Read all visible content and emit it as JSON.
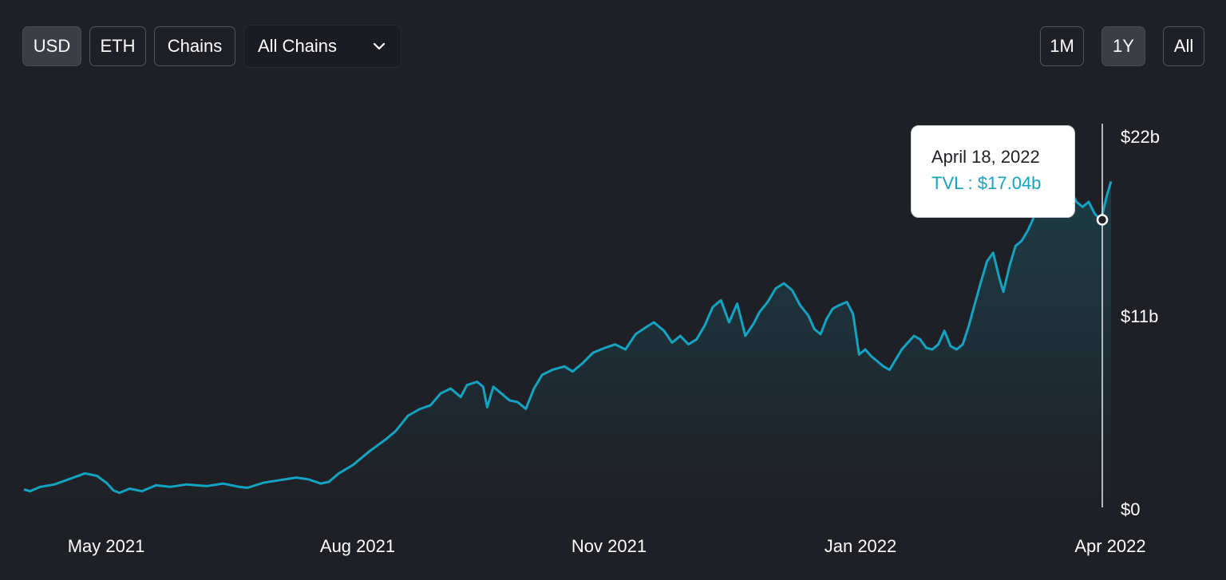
{
  "toolbar": {
    "denomination": [
      {
        "label": "USD",
        "active": true
      },
      {
        "label": "ETH",
        "active": false
      }
    ],
    "chains_label": "Chains",
    "chain_select": {
      "selected": "All Chains"
    },
    "ranges": [
      {
        "label": "1M",
        "active": false
      },
      {
        "label": "1Y",
        "active": true
      },
      {
        "label": "All",
        "active": false
      }
    ]
  },
  "tooltip": {
    "date": "April 18, 2022",
    "label": "TVL",
    "value": "$17.04b"
  },
  "colors": {
    "background": "#1f2025",
    "line": "#14a3c1",
    "tooltip_value": "#14a3c1"
  },
  "chart_data": {
    "type": "area",
    "x_ticks": [
      "May 2021",
      "Aug 2021",
      "Nov 2021",
      "Jan 2022",
      "Apr 2022"
    ],
    "y_ticks": [
      "$0",
      "$11b",
      "$22b"
    ],
    "ylim": [
      0,
      22
    ],
    "y_unit": "billion USD",
    "hovered": {
      "date": "2022-04-18",
      "value": 17.04
    },
    "series": [
      {
        "values": [
          [
            0,
            1.15
          ],
          [
            3,
            1.05
          ],
          [
            8,
            1.3
          ],
          [
            15,
            1.45
          ],
          [
            22,
            1.75
          ],
          [
            30,
            2.1
          ],
          [
            36,
            1.95
          ],
          [
            41,
            1.5
          ],
          [
            44,
            1.1
          ],
          [
            47,
            0.95
          ],
          [
            52,
            1.2
          ],
          [
            58,
            1.05
          ],
          [
            65,
            1.4
          ],
          [
            72,
            1.3
          ],
          [
            80,
            1.45
          ],
          [
            90,
            1.35
          ],
          [
            98,
            1.5
          ],
          [
            106,
            1.3
          ],
          [
            110,
            1.25
          ],
          [
            118,
            1.55
          ],
          [
            126,
            1.7
          ],
          [
            134,
            1.85
          ],
          [
            140,
            1.75
          ],
          [
            146,
            1.5
          ],
          [
            150,
            1.6
          ],
          [
            155,
            2.1
          ],
          [
            162,
            2.6
          ],
          [
            170,
            3.4
          ],
          [
            178,
            4.1
          ],
          [
            183,
            4.6
          ],
          [
            189,
            5.5
          ],
          [
            195,
            5.9
          ],
          [
            200,
            6.1
          ],
          [
            205,
            6.8
          ],
          [
            210,
            7.1
          ],
          [
            215,
            6.6
          ],
          [
            218,
            7.3
          ],
          [
            223,
            7.5
          ],
          [
            226,
            7.2
          ],
          [
            228,
            6.0
          ],
          [
            231,
            7.2
          ],
          [
            235,
            6.8
          ],
          [
            239,
            6.4
          ],
          [
            243,
            6.3
          ],
          [
            247,
            5.9
          ],
          [
            251,
            7.1
          ],
          [
            255,
            7.9
          ],
          [
            260,
            8.2
          ],
          [
            266,
            8.4
          ],
          [
            270,
            8.1
          ],
          [
            275,
            8.6
          ],
          [
            280,
            9.2
          ],
          [
            286,
            9.5
          ],
          [
            291,
            9.7
          ],
          [
            296,
            9.4
          ],
          [
            301,
            10.3
          ],
          [
            306,
            10.7
          ],
          [
            310,
            11.0
          ],
          [
            315,
            10.5
          ],
          [
            319,
            9.8
          ],
          [
            323,
            10.2
          ],
          [
            327,
            9.7
          ],
          [
            331,
            10.0
          ],
          [
            335,
            10.8
          ],
          [
            339,
            11.9
          ],
          [
            343,
            12.3
          ],
          [
            347,
            11.0
          ],
          [
            351,
            12.1
          ],
          [
            355,
            10.2
          ],
          [
            359,
            10.9
          ],
          [
            362,
            11.6
          ],
          [
            366,
            12.2
          ],
          [
            370,
            13.0
          ],
          [
            374,
            13.3
          ],
          [
            378,
            12.9
          ],
          [
            382,
            12.0
          ],
          [
            386,
            11.4
          ],
          [
            389,
            10.6
          ],
          [
            392,
            10.3
          ],
          [
            395,
            11.2
          ],
          [
            398,
            11.8
          ],
          [
            401,
            12.0
          ],
          [
            405,
            12.2
          ],
          [
            408,
            11.5
          ],
          [
            411,
            9.1
          ],
          [
            414,
            9.4
          ],
          [
            417,
            9.0
          ],
          [
            420,
            8.7
          ],
          [
            423,
            8.4
          ],
          [
            426,
            8.2
          ],
          [
            429,
            8.8
          ],
          [
            432,
            9.4
          ],
          [
            435,
            9.8
          ],
          [
            438,
            10.2
          ],
          [
            441,
            10.0
          ],
          [
            444,
            9.5
          ],
          [
            447,
            9.4
          ],
          [
            450,
            9.7
          ],
          [
            453,
            10.5
          ],
          [
            456,
            9.6
          ],
          [
            459,
            9.4
          ],
          [
            462,
            9.7
          ],
          [
            465,
            10.8
          ],
          [
            468,
            12.1
          ],
          [
            471,
            13.4
          ],
          [
            474,
            14.6
          ],
          [
            477,
            15.1
          ],
          [
            480,
            13.6
          ],
          [
            482,
            12.8
          ],
          [
            485,
            14.3
          ],
          [
            488,
            15.5
          ],
          [
            491,
            15.8
          ],
          [
            494,
            16.4
          ],
          [
            497,
            17.2
          ],
          [
            500,
            17.5
          ],
          [
            503,
            17.8
          ],
          [
            506,
            18.1
          ],
          [
            509,
            19.2
          ],
          [
            512,
            19.5
          ],
          [
            515,
            18.8
          ],
          [
            518,
            18.1
          ],
          [
            521,
            17.8
          ],
          [
            524,
            18.1
          ],
          [
            527,
            17.4
          ],
          [
            530,
            17.0
          ],
          [
            533,
            18.5
          ],
          [
            535,
            19.3
          ]
        ]
      }
    ]
  }
}
